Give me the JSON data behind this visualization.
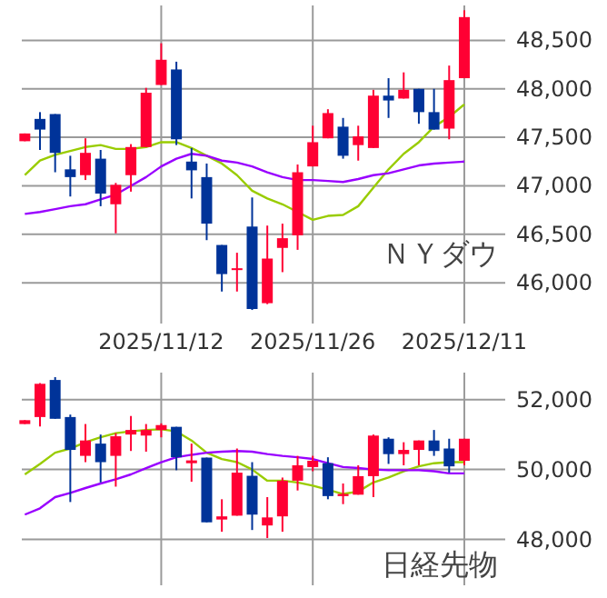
{
  "chart_data": [
    {
      "type": "candlestick",
      "title": "ＮＹダウ",
      "grid": true,
      "categories": [
        null,
        null,
        null,
        null,
        null,
        null,
        null,
        null,
        null,
        "2025/11/12",
        null,
        null,
        null,
        null,
        null,
        null,
        null,
        null,
        null,
        "2025/11/26",
        null,
        null,
        null,
        null,
        null,
        null,
        null,
        null,
        null,
        "2025/12/11"
      ],
      "ohlc": [
        [
          47460,
          47540,
          47460,
          47540
        ],
        [
          47690,
          47760,
          47370,
          47580
        ],
        [
          47740,
          47740,
          47140,
          47340
        ],
        [
          47170,
          47310,
          46890,
          47090
        ],
        [
          47110,
          47490,
          47060,
          47340
        ],
        [
          47280,
          47370,
          46790,
          46920
        ],
        [
          46810,
          47030,
          46510,
          47010
        ],
        [
          47110,
          47430,
          46940,
          47400
        ],
        [
          47400,
          48010,
          47400,
          47960
        ],
        [
          48040,
          48470,
          48040,
          48300
        ],
        [
          48200,
          48280,
          47420,
          47480
        ],
        [
          47250,
          47390,
          46870,
          47160
        ],
        [
          47090,
          47230,
          46440,
          46610
        ],
        [
          46390,
          46390,
          45910,
          46090
        ],
        [
          46140,
          46310,
          45910,
          46150
        ],
        [
          46580,
          46880,
          45720,
          45730
        ],
        [
          45790,
          46590,
          45780,
          46250
        ],
        [
          46360,
          46610,
          46110,
          46460
        ],
        [
          46490,
          47220,
          46340,
          47140
        ],
        [
          47200,
          47620,
          47200,
          47450
        ],
        [
          47490,
          47790,
          47490,
          47750
        ],
        [
          47610,
          47700,
          47280,
          47310
        ],
        [
          47420,
          47620,
          47260,
          47510
        ],
        [
          47390,
          47990,
          47390,
          47930
        ],
        [
          47930,
          48110,
          47700,
          47880
        ],
        [
          47900,
          48170,
          47900,
          47990
        ],
        [
          48000,
          48000,
          47640,
          47760
        ],
        [
          47760,
          48000,
          47580,
          47580
        ],
        [
          47590,
          48240,
          47480,
          48090
        ],
        [
          48110,
          48810,
          48110,
          48740
        ]
      ],
      "colors": [
        "#ff0033",
        "#003399",
        "#003399",
        "#003399",
        "#ff0033",
        "#003399",
        "#ff0033",
        "#ff0033",
        "#ff0033",
        "#ff0033",
        "#003399",
        "#003399",
        "#003399",
        "#003399",
        "#ff0033",
        "#003399",
        "#ff0033",
        "#ff0033",
        "#ff0033",
        "#ff0033",
        "#ff0033",
        "#003399",
        "#ff0033",
        "#ff0033",
        "#003399",
        "#ff0033",
        "#003399",
        "#003399",
        "#ff0033",
        "#ff0033"
      ],
      "series": [
        {
          "type": "line",
          "color": "#99cc00",
          "values": [
            47110,
            47260,
            47320,
            47360,
            47400,
            47420,
            47380,
            47380,
            47400,
            47450,
            47450,
            47390,
            47310,
            47230,
            47110,
            46950,
            46870,
            46810,
            46730,
            46650,
            46690,
            46700,
            46790,
            46980,
            47170,
            47330,
            47450,
            47610,
            47710,
            47840
          ]
        },
        {
          "type": "line",
          "color": "#9900ff",
          "values": [
            46710,
            46730,
            46760,
            46790,
            46810,
            46860,
            46910,
            47000,
            47090,
            47200,
            47280,
            47330,
            47310,
            47260,
            47240,
            47200,
            47140,
            47090,
            47060,
            47060,
            47050,
            47040,
            47070,
            47110,
            47130,
            47170,
            47210,
            47230,
            47240,
            47250
          ]
        }
      ],
      "ylim": [
        45580,
        48860
      ],
      "yticks": [
        {
          "value": 46000,
          "label": "46,000"
        },
        {
          "value": 46500,
          "label": "46,500"
        },
        {
          "value": 47000,
          "label": "47,000"
        },
        {
          "value": 47500,
          "label": "47,500"
        },
        {
          "value": 48000,
          "label": "48,000"
        },
        {
          "value": 48500,
          "label": "48,500"
        }
      ]
    },
    {
      "type": "candlestick",
      "title": "日経先物",
      "grid": true,
      "tick_labels": "y",
      "categories": [
        null,
        null,
        null,
        null,
        null,
        null,
        null,
        null,
        null,
        "2025/11/12",
        null,
        null,
        null,
        null,
        null,
        null,
        null,
        null,
        null,
        "2025/11/26",
        null,
        null,
        null,
        null,
        null,
        null,
        null,
        null,
        null,
        "2025/12/11"
      ],
      "ohlc": [
        [
          51300,
          51410,
          51300,
          51410
        ],
        [
          51500,
          52470,
          51230,
          52450
        ],
        [
          52560,
          52640,
          51450,
          51450
        ],
        [
          51500,
          51570,
          49070,
          50560
        ],
        [
          50390,
          51300,
          50210,
          50830
        ],
        [
          50740,
          51000,
          49630,
          50210
        ],
        [
          50390,
          51040,
          49510,
          50950
        ],
        [
          51000,
          51530,
          50530,
          51130
        ],
        [
          50970,
          51300,
          50510,
          51130
        ],
        [
          51130,
          51320,
          50920,
          51270
        ],
        [
          51220,
          51220,
          49980,
          50350
        ],
        [
          50180,
          50740,
          49650,
          50260
        ],
        [
          50340,
          50340,
          48490,
          48490
        ],
        [
          48570,
          49150,
          48220,
          48660
        ],
        [
          48680,
          50600,
          48680,
          49910
        ],
        [
          49820,
          50210,
          48270,
          48710
        ],
        [
          48400,
          49210,
          48040,
          48630
        ],
        [
          48660,
          49770,
          48220,
          49680
        ],
        [
          49680,
          50390,
          49400,
          50120
        ],
        [
          50070,
          50390,
          49950,
          50250
        ],
        [
          50180,
          50350,
          49150,
          49240
        ],
        [
          49240,
          49600,
          49010,
          49300
        ],
        [
          49280,
          50120,
          49280,
          49810
        ],
        [
          49810,
          51000,
          49210,
          50970
        ],
        [
          50880,
          50920,
          50160,
          50440
        ],
        [
          50440,
          50780,
          50120,
          50560
        ],
        [
          50560,
          50830,
          50120,
          50830
        ],
        [
          50830,
          51130,
          50390,
          50530
        ],
        [
          50600,
          50880,
          49910,
          50090
        ],
        [
          50250,
          50880,
          50120,
          50880
        ]
      ],
      "colors": [
        "#ff0033",
        "#ff0033",
        "#003399",
        "#003399",
        "#ff0033",
        "#003399",
        "#ff0033",
        "#ff0033",
        "#ff0033",
        "#ff0033",
        "#003399",
        "#ff0033",
        "#003399",
        "#ff0033",
        "#ff0033",
        "#003399",
        "#ff0033",
        "#ff0033",
        "#ff0033",
        "#ff0033",
        "#003399",
        "#ff0033",
        "#ff0033",
        "#ff0033",
        "#003399",
        "#ff0033",
        "#ff0033",
        "#003399",
        "#003399",
        "#ff0033"
      ],
      "series": [
        {
          "type": "line",
          "color": "#99cc00",
          "values": [
            49860,
            50160,
            50480,
            50600,
            50780,
            50920,
            51040,
            51090,
            51130,
            51150,
            51090,
            50830,
            50480,
            50300,
            50210,
            50000,
            49680,
            49680,
            49630,
            49540,
            49420,
            49300,
            49370,
            49630,
            49770,
            49950,
            50090,
            50180,
            50210,
            50210
          ]
        },
        {
          "type": "line",
          "color": "#9900ff",
          "values": [
            48710,
            48890,
            49210,
            49330,
            49470,
            49600,
            49720,
            49860,
            50040,
            50210,
            50350,
            50420,
            50480,
            50510,
            50530,
            50510,
            50440,
            50390,
            50350,
            50300,
            50180,
            50070,
            50040,
            50000,
            49980,
            49980,
            49980,
            49950,
            49890,
            49890
          ]
        }
      ],
      "ylim": [
        46690,
        52770
      ],
      "yticks": [
        {
          "value": 48000,
          "label": "48,000"
        },
        {
          "value": 50000,
          "label": "50,000"
        },
        {
          "value": 52000,
          "label": "52,000"
        }
      ]
    }
  ]
}
